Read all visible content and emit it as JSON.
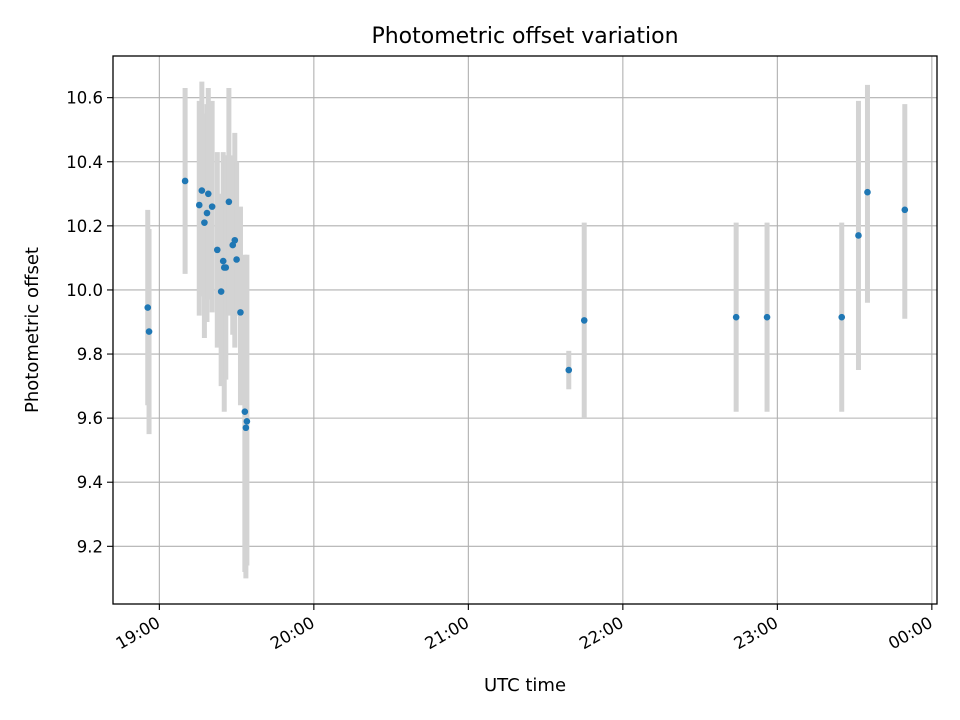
{
  "chart_data": {
    "type": "scatter",
    "title": "Photometric offset variation",
    "xlabel": "UTC time",
    "ylabel": "Photometric offset",
    "x_axis": "time",
    "xlim": [
      "18:42",
      "24:02"
    ],
    "ylim": [
      9.02,
      10.73
    ],
    "x_ticks": [
      {
        "value": "19:00",
        "label": "19:00"
      },
      {
        "value": "20:00",
        "label": "20:00"
      },
      {
        "value": "21:00",
        "label": "21:00"
      },
      {
        "value": "22:00",
        "label": "22:00"
      },
      {
        "value": "23:00",
        "label": "23:00"
      },
      {
        "value": "24:00",
        "label": "00:00"
      }
    ],
    "y_ticks": [
      9.2,
      9.4,
      9.6,
      9.8,
      10.0,
      10.2,
      10.4,
      10.6
    ],
    "grid": true,
    "x_tick_rotation": 30,
    "marker_color": "#1f77b4",
    "errorbar_color": "#d3d3d3",
    "points": [
      {
        "t": "18:55.5",
        "y": 9.945,
        "lo": 9.64,
        "hi": 10.25
      },
      {
        "t": "18:56.0",
        "y": 9.87,
        "lo": 9.55,
        "hi": 10.19
      },
      {
        "t": "19:10.0",
        "y": 10.34,
        "lo": 10.05,
        "hi": 10.63
      },
      {
        "t": "19:15.5",
        "y": 10.265,
        "lo": 9.92,
        "hi": 10.59
      },
      {
        "t": "19:16.5",
        "y": 10.31,
        "lo": 9.98,
        "hi": 10.65
      },
      {
        "t": "19:17.5",
        "y": 10.21,
        "lo": 9.85,
        "hi": 10.55
      },
      {
        "t": "19:18.5",
        "y": 10.24,
        "lo": 9.9,
        "hi": 10.58
      },
      {
        "t": "19:19.0",
        "y": 10.3,
        "lo": 9.97,
        "hi": 10.63
      },
      {
        "t": "19:20.5",
        "y": 10.26,
        "lo": 9.93,
        "hi": 10.59
      },
      {
        "t": "19:22.5",
        "y": 10.125,
        "lo": 9.82,
        "hi": 10.43
      },
      {
        "t": "19:24.0",
        "y": 9.995,
        "lo": 9.7,
        "hi": 10.3
      },
      {
        "t": "19:24.8",
        "y": 10.09,
        "lo": 9.75,
        "hi": 10.43
      },
      {
        "t": "19:25.2",
        "y": 10.07,
        "lo": 9.62,
        "hi": 10.42
      },
      {
        "t": "19:25.8",
        "y": 10.07,
        "lo": 9.72,
        "hi": 10.42
      },
      {
        "t": "19:27.0",
        "y": 10.275,
        "lo": 9.92,
        "hi": 10.63
      },
      {
        "t": "19:28.5",
        "y": 10.14,
        "lo": 9.86,
        "hi": 10.42
      },
      {
        "t": "19:29.3",
        "y": 10.155,
        "lo": 9.82,
        "hi": 10.49
      },
      {
        "t": "19:30.0",
        "y": 10.095,
        "lo": 9.92,
        "hi": 10.4
      },
      {
        "t": "19:31.5",
        "y": 9.93,
        "lo": 9.64,
        "hi": 10.26
      },
      {
        "t": "19:33.2",
        "y": 9.62,
        "lo": 9.12,
        "hi": 10.11
      },
      {
        "t": "19:33.6",
        "y": 9.57,
        "lo": 9.1,
        "hi": 10.05
      },
      {
        "t": "19:34.0",
        "y": 9.59,
        "lo": 9.14,
        "hi": 10.11
      },
      {
        "t": "21:39.0",
        "y": 9.75,
        "lo": 9.69,
        "hi": 9.81
      },
      {
        "t": "21:45.0",
        "y": 9.905,
        "lo": 9.6,
        "hi": 10.21
      },
      {
        "t": "22:44.0",
        "y": 9.915,
        "lo": 9.62,
        "hi": 10.21
      },
      {
        "t": "22:56.0",
        "y": 9.915,
        "lo": 9.62,
        "hi": 10.21
      },
      {
        "t": "23:25.0",
        "y": 9.915,
        "lo": 9.62,
        "hi": 10.21
      },
      {
        "t": "23:31.5",
        "y": 10.17,
        "lo": 9.75,
        "hi": 10.59
      },
      {
        "t": "23:35.0",
        "y": 10.305,
        "lo": 9.96,
        "hi": 10.64
      },
      {
        "t": "23:49.5",
        "y": 10.25,
        "lo": 9.91,
        "hi": 10.58
      }
    ]
  }
}
